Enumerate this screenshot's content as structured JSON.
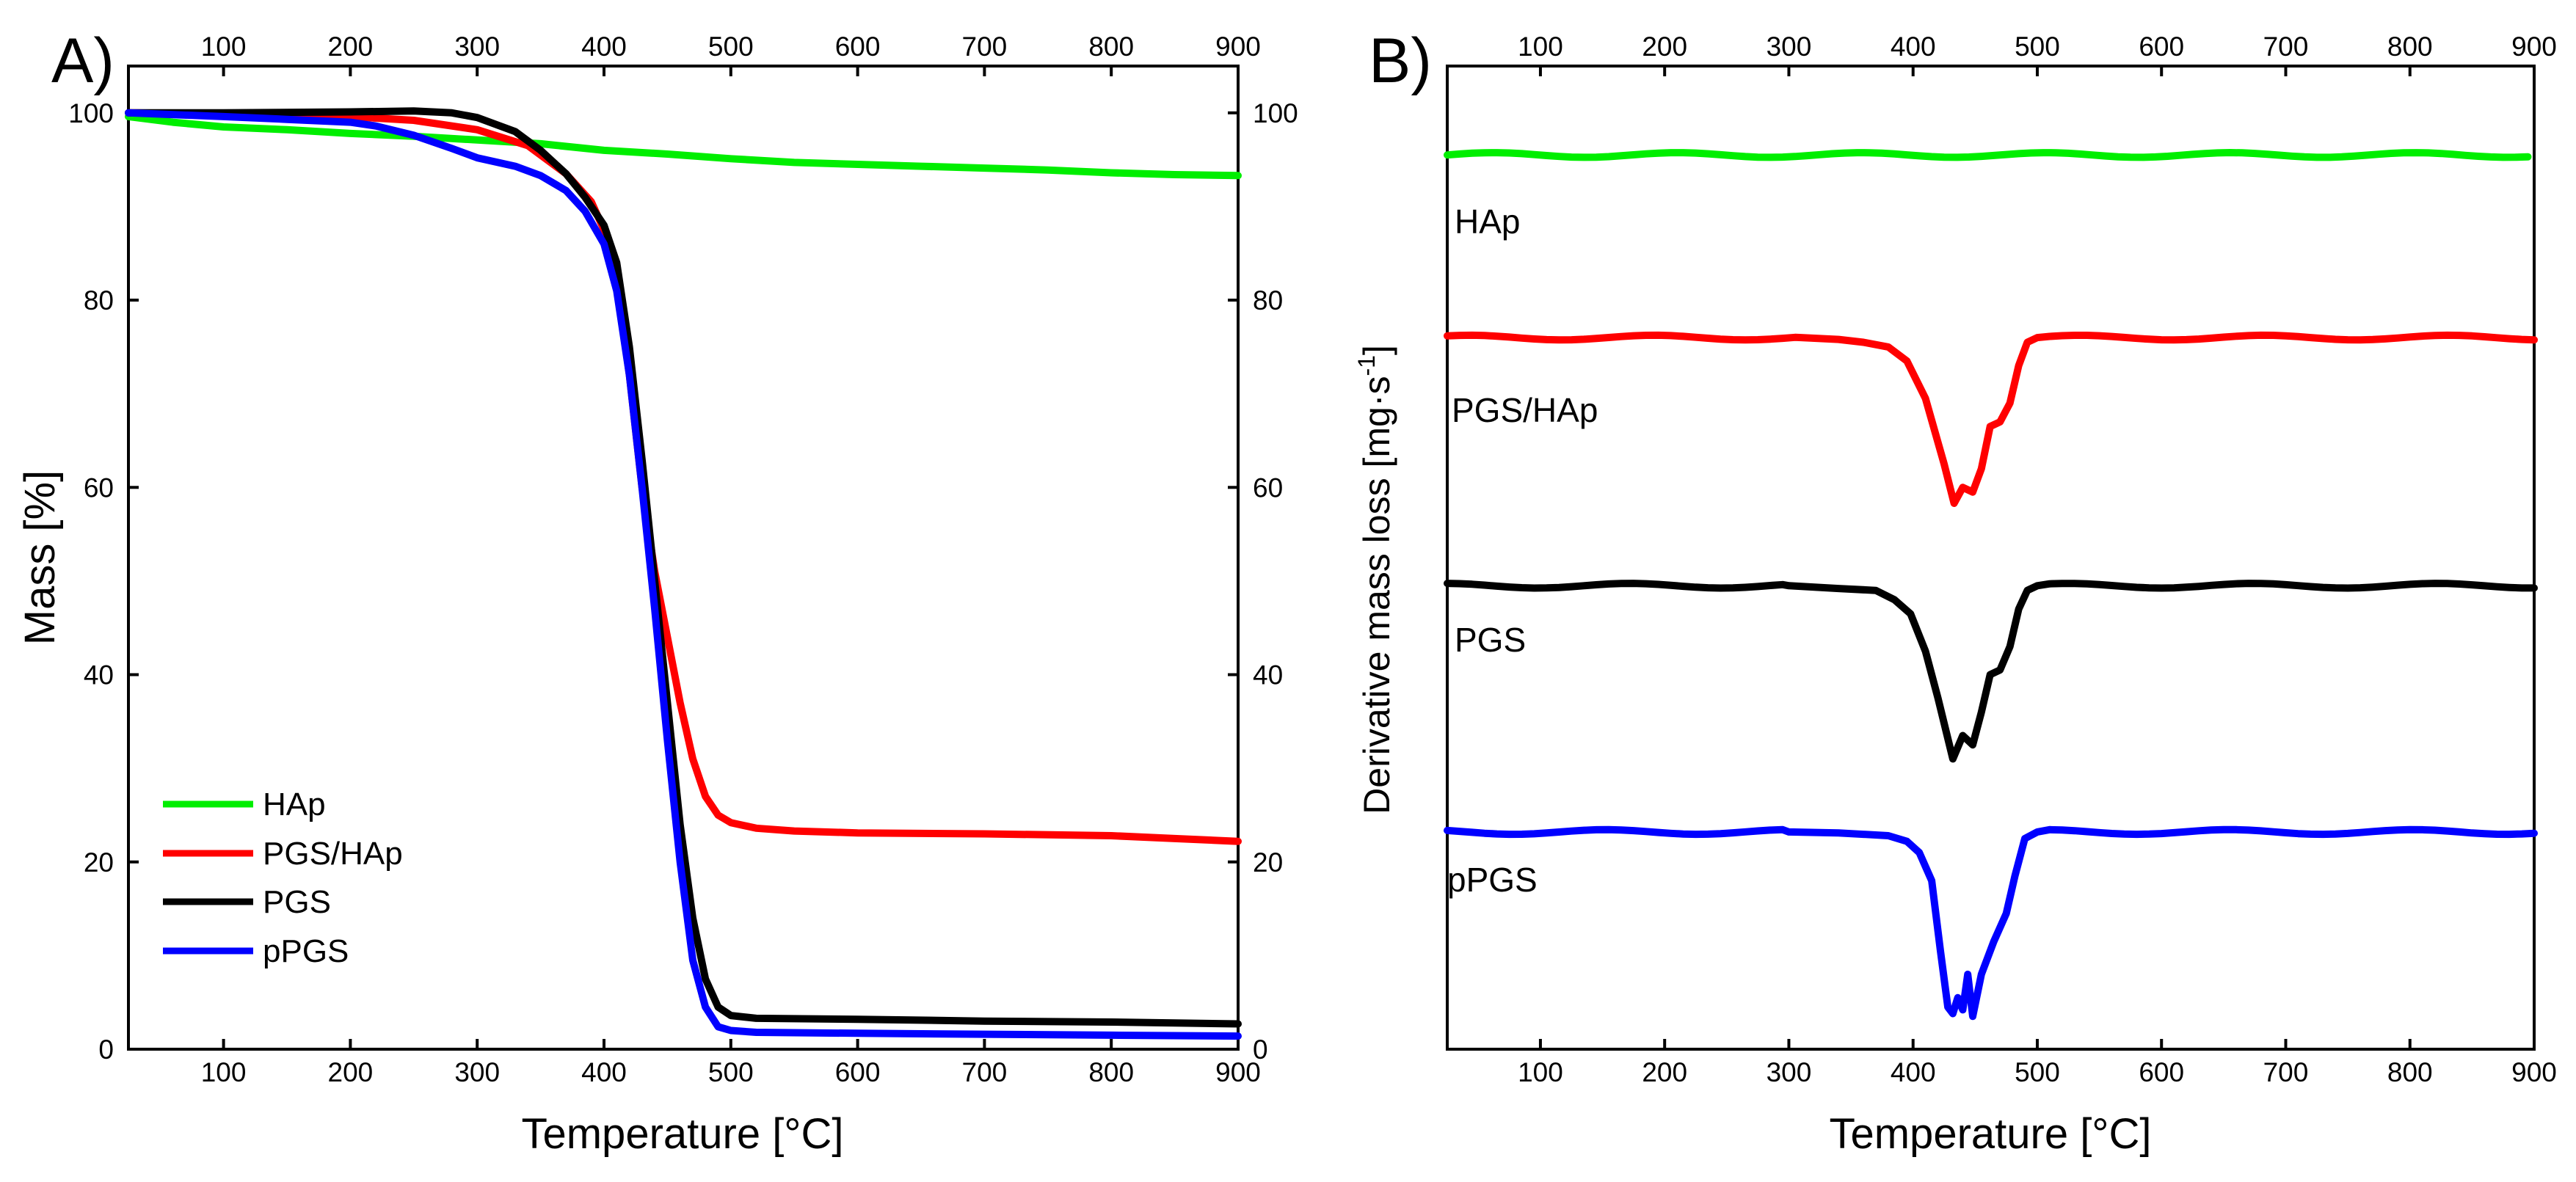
{
  "colors": {
    "HAp": "#00ee00",
    "PGS/HAp": "#ff0000",
    "PGS": "#000000",
    "pPGS": "#0000ff"
  },
  "chart_data": [
    {
      "panel": "A)",
      "type": "line",
      "xlabel": "Temperature [°C]",
      "ylabel": "Mass [%]",
      "xlim": [
        25,
        900
      ],
      "ylim": [
        0,
        105
      ],
      "xticks": [
        100,
        200,
        300,
        400,
        500,
        600,
        700,
        800,
        900
      ],
      "yticks": [
        0,
        20,
        40,
        60,
        80,
        100
      ],
      "top_axis_labels": true,
      "right_axis_labels": true,
      "grid": false,
      "legend_position": "bottom-left",
      "series": [
        {
          "name": "HAp",
          "x": [
            25,
            60,
            100,
            150,
            200,
            250,
            300,
            350,
            400,
            450,
            500,
            550,
            600,
            650,
            700,
            750,
            800,
            850,
            900
          ],
          "y": [
            99.6,
            99.0,
            98.5,
            98.2,
            97.8,
            97.5,
            97.1,
            96.7,
            96.0,
            95.6,
            95.1,
            94.7,
            94.5,
            94.3,
            94.1,
            93.9,
            93.6,
            93.4,
            93.3
          ]
        },
        {
          "name": "PGS/HAp",
          "x": [
            25,
            100,
            200,
            250,
            300,
            340,
            370,
            390,
            400,
            410,
            420,
            430,
            440,
            450,
            460,
            470,
            480,
            490,
            500,
            520,
            550,
            600,
            700,
            800,
            850,
            900
          ],
          "y": [
            100,
            99.9,
            99.6,
            99.2,
            98.2,
            96.5,
            93.5,
            90.5,
            87.5,
            82,
            72,
            60,
            51,
            44,
            37,
            31,
            27,
            25,
            24.2,
            23.6,
            23.3,
            23.1,
            23.0,
            22.8,
            22.5,
            22.2
          ]
        },
        {
          "name": "PGS",
          "x": [
            25,
            100,
            200,
            250,
            280,
            300,
            330,
            350,
            370,
            385,
            400,
            410,
            420,
            430,
            440,
            450,
            460,
            470,
            480,
            490,
            500,
            520,
            600,
            700,
            800,
            900
          ],
          "y": [
            100,
            100,
            100.1,
            100.2,
            100,
            99.5,
            98,
            96,
            93.5,
            91,
            88,
            84,
            75,
            63,
            50,
            37,
            24,
            14,
            7.5,
            4.5,
            3.6,
            3.3,
            3.2,
            3.0,
            2.9,
            2.7
          ]
        },
        {
          "name": "pPGS",
          "x": [
            25,
            100,
            150,
            200,
            220,
            250,
            280,
            300,
            330,
            350,
            370,
            385,
            400,
            410,
            420,
            430,
            440,
            450,
            460,
            470,
            480,
            490,
            500,
            520,
            600,
            700,
            800,
            900
          ],
          "y": [
            100,
            99.6,
            99.3,
            99,
            98.6,
            97.6,
            96.2,
            95.2,
            94.3,
            93.3,
            91.7,
            89.5,
            86,
            81,
            72,
            60,
            47,
            33,
            20,
            9.5,
            4.5,
            2.4,
            2.0,
            1.8,
            1.7,
            1.6,
            1.5,
            1.4
          ]
        }
      ]
    },
    {
      "panel": "B)",
      "type": "line",
      "xlabel": "Temperature [°C]",
      "ylabel": "Derivative mass loss [mg·s",
      "ylabel_superscript": "-1",
      "ylabel_end": "]",
      "xlim": [
        25,
        900
      ],
      "xticks": [
        100,
        200,
        300,
        400,
        500,
        600,
        700,
        800,
        900
      ],
      "top_axis_labels": true,
      "y_tick_labels": false,
      "grid": false,
      "offset_series": true,
      "series": [
        {
          "name": "HAp",
          "baseline": 95.5,
          "dips": []
        },
        {
          "name": "PGS/HAp",
          "baseline": 76,
          "dips": [
            {
              "x": [
                310,
                340,
                360,
                380,
                395,
                410,
                425,
                433,
                440,
                448,
                455,
                462,
                470,
                478,
                485,
                492,
                500
              ],
              "y": [
                76,
                75.8,
                75.5,
                75,
                73.5,
                69.5,
                62.5,
                58.3,
                60,
                59.5,
                62,
                66.5,
                67,
                69,
                73,
                75.5,
                76
              ]
            }
          ]
        },
        {
          "name": "PGS",
          "baseline": 49.5,
          "dips": [
            {
              "x": [
                300,
                340,
                370,
                385,
                398,
                410,
                420,
                432,
                440,
                448,
                455,
                462,
                470,
                478,
                485,
                492,
                500
              ],
              "y": [
                49.5,
                49.2,
                49,
                48,
                46.5,
                42.5,
                37.5,
                31,
                33.5,
                32.5,
                36,
                40,
                40.5,
                43,
                47,
                49,
                49.5
              ]
            }
          ]
        },
        {
          "name": "pPGS",
          "baseline": 23.2,
          "dips": [
            {
              "x": [
                300,
                340,
                380,
                395,
                405,
                415,
                422,
                428,
                432,
                436,
                440,
                444,
                448,
                455,
                465,
                475,
                482,
                490,
                500
              ],
              "y": [
                23.2,
                23.1,
                22.8,
                22.2,
                21,
                18,
                10.5,
                4.5,
                3.8,
                5.5,
                4.2,
                8,
                3.5,
                8,
                11.5,
                14.5,
                18.5,
                22.5,
                23.2
              ]
            }
          ]
        }
      ]
    }
  ]
}
